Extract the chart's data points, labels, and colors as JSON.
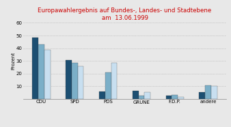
{
  "title_line1": "Europawahlergebnis auf Bundes-, Landes- und Stadtebene",
  "title_line2": "am  13.06.1999",
  "ylabel": "Prozent",
  "categories": [
    "CDU",
    "SPD",
    "PDS",
    "GRÜNE",
    "F.D.P.",
    "andere"
  ],
  "series": {
    "Bundesergebnis": [
      48.5,
      30.7,
      5.8,
      6.4,
      3.0,
      5.5
    ],
    "Landesergebnis": [
      43.0,
      28.3,
      21.0,
      3.0,
      3.5,
      11.0
    ],
    "Stadtergebnis": [
      39.0,
      26.0,
      28.5,
      5.5,
      1.8,
      10.0
    ]
  },
  "colors": {
    "Bundesergebnis": "#1c4f72",
    "Landesergebnis": "#7bafc8",
    "Stadtergebnis": "#c8dff0"
  },
  "ylim": [
    0,
    60
  ],
  "yticks": [
    10,
    20,
    30,
    40,
    50,
    60
  ],
  "title_color": "#cc0000",
  "background_color": "#e8e8e8",
  "grid_color": "#aaaaaa"
}
